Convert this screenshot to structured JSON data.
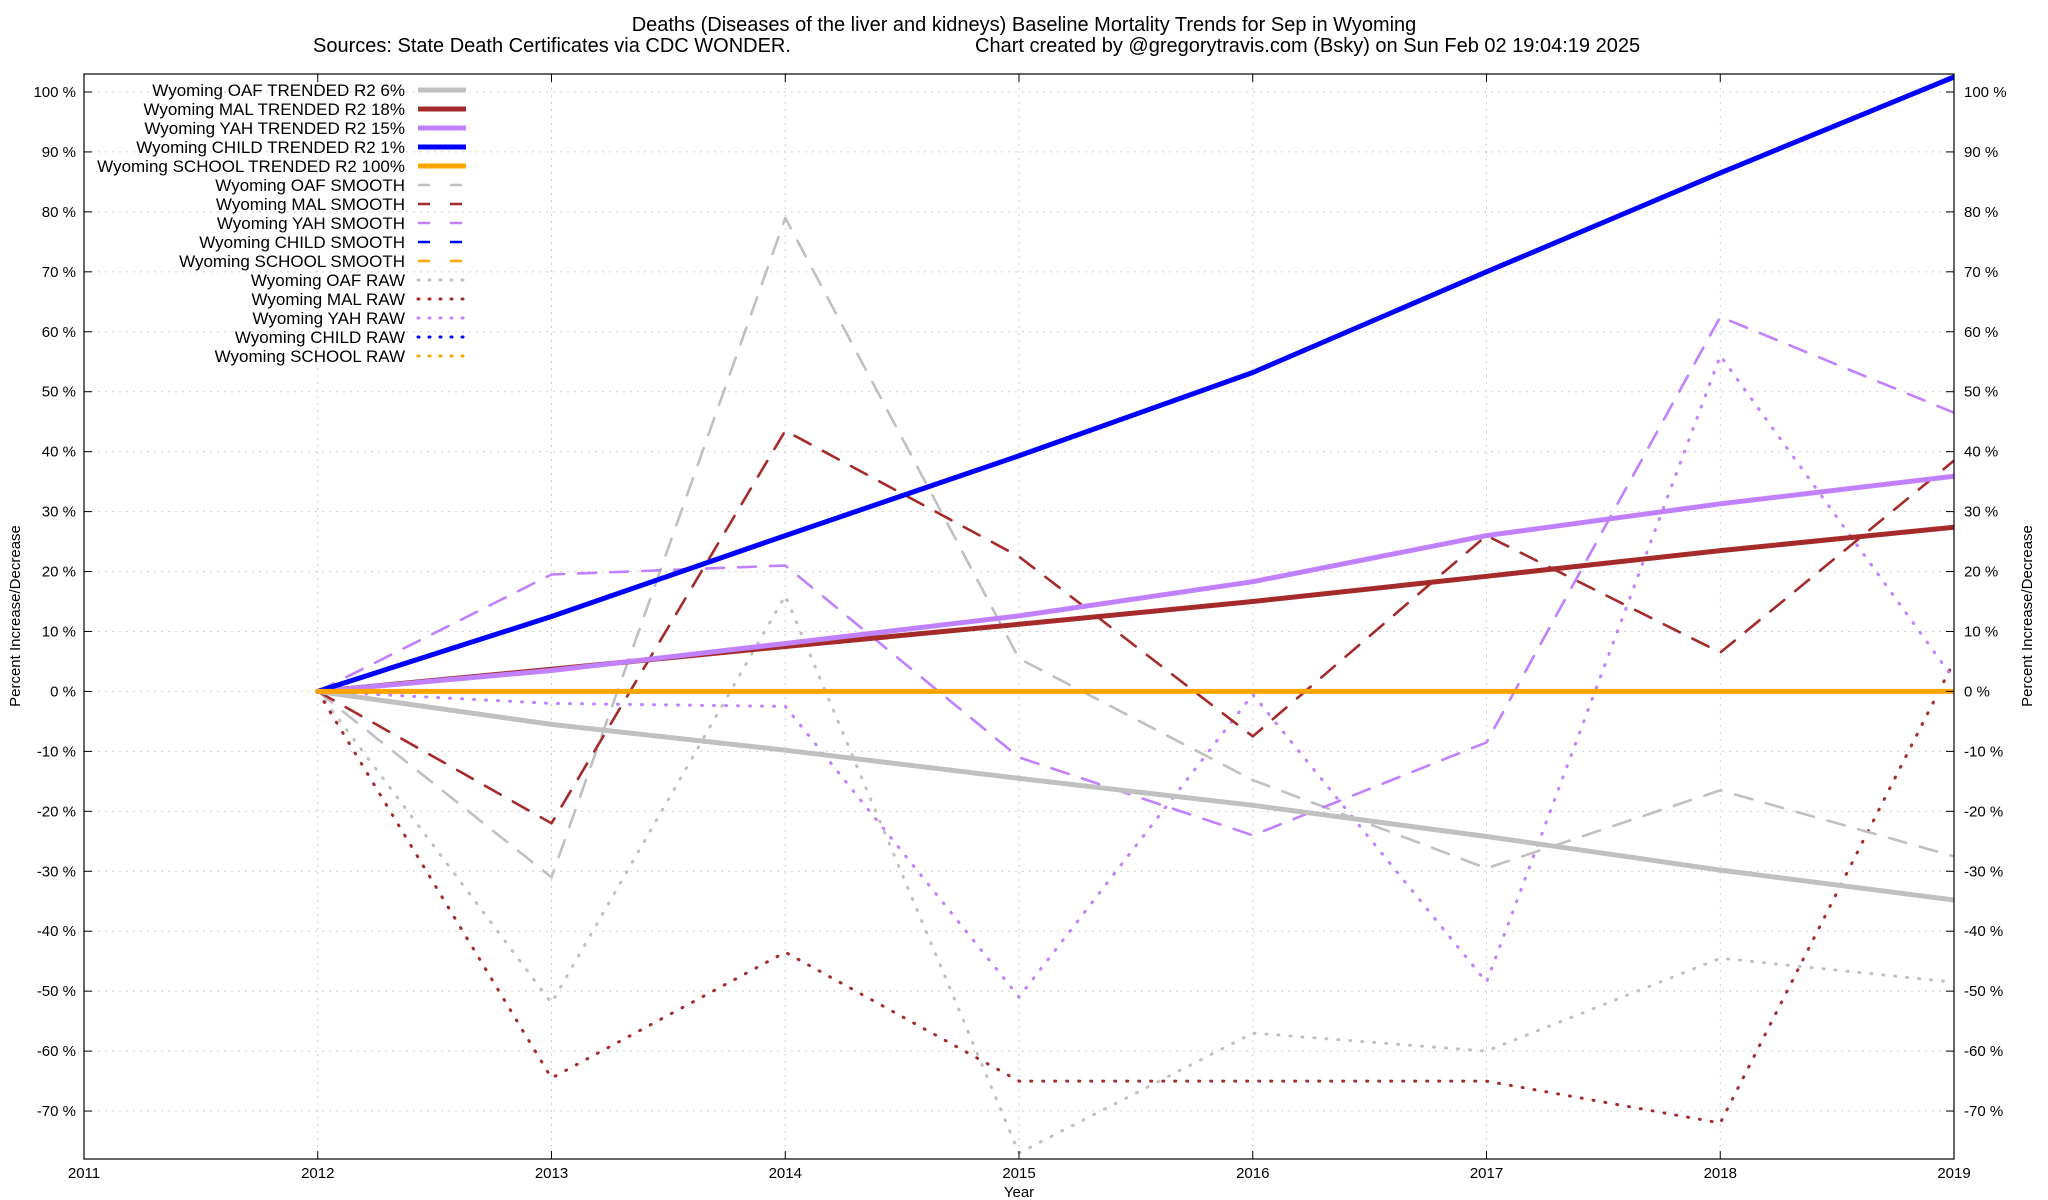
{
  "chart_data": {
    "type": "line",
    "title": "Deaths (Diseases of the liver and kidneys)  Baseline Mortality Trends for Sep in Wyoming",
    "subtitle_left": "Sources: State Death Certificates via CDC WONDER.",
    "subtitle_right": "Chart created by @gregorytravis.com (Bsky) on Sun Feb 02 19:04:19 2025",
    "xlabel": "Year",
    "ylabel_left": "Percent Increase/Decrease",
    "ylabel_right": "Percent Increase/Decrease",
    "xlim": [
      2011,
      2019
    ],
    "ylim": [
      -78,
      103
    ],
    "x_ticks": [
      2011,
      2012,
      2013,
      2014,
      2015,
      2016,
      2017,
      2018,
      2019
    ],
    "y_ticks": [
      -70,
      -60,
      -50,
      -40,
      -30,
      -20,
      -10,
      0,
      10,
      20,
      30,
      40,
      50,
      60,
      70,
      80,
      90,
      100
    ],
    "y_tick_labels": [
      "-70 %",
      "-60 %",
      "-50 %",
      "-40 %",
      "-30 %",
      "-20 %",
      "-10 %",
      "0 %",
      "10 %",
      "20 %",
      "30 %",
      "40 %",
      "50 %",
      "60 %",
      "70 %",
      "80 %",
      "90 %",
      "100 %"
    ],
    "x_tick_labels": [
      "2011",
      "2012",
      "2013",
      "2014",
      "2015",
      "2016",
      "2017",
      "2018",
      "2019"
    ],
    "grid": true,
    "legend_position": "top-left",
    "series": [
      {
        "name": "Wyoming OAF TRENDED R2  6%",
        "style": "solid",
        "color": "#c0c0c0",
        "x": [
          2012,
          2013,
          2014,
          2015,
          2016,
          2017,
          2018,
          2019
        ],
        "y": [
          0,
          -5.5,
          -9.8,
          -14.5,
          -19,
          -24.2,
          -29.8,
          -34.8
        ]
      },
      {
        "name": "Wyoming MAL TRENDED R2  18%",
        "style": "solid",
        "color": "#a52a2a",
        "x": [
          2012,
          2013,
          2014,
          2015,
          2016,
          2017,
          2018,
          2019
        ],
        "y": [
          0,
          3.7,
          7.5,
          11.2,
          15,
          19.2,
          23.5,
          27.4
        ]
      },
      {
        "name": "Wyoming YAH TRENDED R2  15%",
        "style": "solid",
        "color": "#c080ff",
        "x": [
          2012,
          2013,
          2014,
          2015,
          2016,
          2017,
          2018,
          2019
        ],
        "y": [
          0,
          3.5,
          8,
          12.6,
          18.3,
          26,
          31.3,
          35.9
        ]
      },
      {
        "name": "Wyoming CHILD TRENDED R2  1%",
        "style": "solid",
        "color": "#0000ff",
        "x": [
          2012,
          2013,
          2014,
          2015,
          2016,
          2017,
          2018,
          2019
        ],
        "y": [
          0,
          12.5,
          26,
          39.3,
          53.2,
          70,
          86.5,
          102.5
        ]
      },
      {
        "name": "Wyoming SCHOOL TRENDED R2 100%",
        "style": "solid",
        "color": "#ffa500",
        "x": [
          2012,
          2013,
          2014,
          2015,
          2016,
          2017,
          2018,
          2019
        ],
        "y": [
          0,
          0,
          0,
          0,
          0,
          0,
          0,
          0
        ]
      },
      {
        "name": "Wyoming OAF SMOOTH",
        "style": "dashed",
        "color": "#c0c0c0",
        "x": [
          2012,
          2013,
          2014,
          2015,
          2016,
          2017,
          2018,
          2019
        ],
        "y": [
          0,
          -31,
          79,
          5.5,
          -14.8,
          -29.5,
          -16.5,
          -27.5
        ]
      },
      {
        "name": "Wyoming MAL SMOOTH",
        "style": "dashed",
        "color": "#a52a2a",
        "x": [
          2012,
          2013,
          2014,
          2015,
          2016,
          2017,
          2018,
          2019
        ],
        "y": [
          0,
          -22,
          43.5,
          22.5,
          -7.5,
          26,
          6.5,
          38.5
        ]
      },
      {
        "name": "Wyoming YAH SMOOTH",
        "style": "dashed",
        "color": "#c080ff",
        "x": [
          2012,
          2013,
          2014,
          2015,
          2016,
          2017,
          2018,
          2019
        ],
        "y": [
          0,
          19.5,
          21,
          -11,
          -24,
          -8.5,
          62.5,
          46.5
        ]
      },
      {
        "name": "Wyoming CHILD SMOOTH",
        "style": "dashed",
        "color": "#0000ff",
        "x": [],
        "y": []
      },
      {
        "name": "Wyoming SCHOOL SMOOTH",
        "style": "dashed",
        "color": "#ffa500",
        "x": [],
        "y": []
      },
      {
        "name": "Wyoming OAF RAW",
        "style": "dotted",
        "color": "#c0c0c0",
        "x": [
          2012,
          2013,
          2014,
          2015,
          2016,
          2017,
          2018,
          2019
        ],
        "y": [
          0,
          -52,
          16,
          -77,
          -57,
          -60,
          -44.5,
          -48.5
        ]
      },
      {
        "name": "Wyoming MAL RAW",
        "style": "dotted",
        "color": "#a52a2a",
        "x": [
          2012,
          2013,
          2014,
          2015,
          2016,
          2017,
          2018,
          2019
        ],
        "y": [
          0,
          -64.5,
          -43.5,
          -65,
          -65,
          -65,
          -72,
          5
        ]
      },
      {
        "name": "Wyoming YAH RAW",
        "style": "dotted",
        "color": "#c080ff",
        "x": [
          2012,
          2013,
          2014,
          2015,
          2016,
          2017,
          2018,
          2019
        ],
        "y": [
          0,
          -2,
          -2.5,
          -51,
          -0.5,
          -48.5,
          56,
          2
        ]
      },
      {
        "name": "Wyoming CHILD RAW",
        "style": "dotted",
        "color": "#0000ff",
        "x": [],
        "y": []
      },
      {
        "name": "Wyoming SCHOOL RAW",
        "style": "dotted",
        "color": "#ffa500",
        "x": [],
        "y": []
      }
    ]
  }
}
